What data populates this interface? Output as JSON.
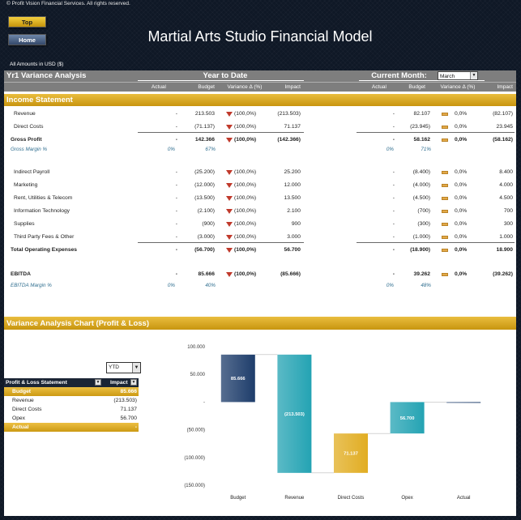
{
  "copyright": "© Profit Vision Financial Services. All rights reserved.",
  "nav": {
    "top": "Top",
    "home": "Home"
  },
  "title": "Martial Arts Studio Financial Model",
  "amounts_note": "All Amounts in  USD ($)",
  "variance": {
    "title": "Yr1 Variance Analysis",
    "ytd_label": "Year to Date",
    "cm_label": "Current Month:",
    "month": "March",
    "columns": [
      "Actual",
      "Budget",
      "Variance Δ  (%)",
      "Impact"
    ],
    "income_statement_label": "Income Statement",
    "rows": [
      {
        "label": "Revenue",
        "ytd": [
          "-",
          "213.503",
          "(100,0%)",
          "(213.503)"
        ],
        "cm": [
          "-",
          "82.107",
          "0,0%",
          "(82.107)"
        ]
      },
      {
        "label": "Direct Costs",
        "ytd": [
          "-",
          "(71.137)",
          "(100,0%)",
          "71.137"
        ],
        "cm": [
          "-",
          "(23.945)",
          "0,0%",
          "23.945"
        ]
      },
      {
        "label": "Gross Profit",
        "ytd": [
          "-",
          "142.366",
          "(100,0%)",
          "(142.366)"
        ],
        "cm": [
          "-",
          "58.162",
          "0,0%",
          "(58.162)"
        ]
      },
      {
        "label": "Gross Margin %",
        "ytd": [
          "0%",
          "67%"
        ],
        "cm": [
          "0%",
          "71%"
        ]
      },
      {
        "label": "Indirect Payroll",
        "ytd": [
          "-",
          "(25.200)",
          "(100,0%)",
          "25.200"
        ],
        "cm": [
          "-",
          "(8.400)",
          "0,0%",
          "8.400"
        ]
      },
      {
        "label": "Marketing",
        "ytd": [
          "-",
          "(12.000)",
          "(100,0%)",
          "12.000"
        ],
        "cm": [
          "-",
          "(4.000)",
          "0,0%",
          "4.000"
        ]
      },
      {
        "label": "Rent, Utilities & Telecom",
        "ytd": [
          "-",
          "(13.500)",
          "(100,0%)",
          "13.500"
        ],
        "cm": [
          "-",
          "(4.500)",
          "0,0%",
          "4.500"
        ]
      },
      {
        "label": "Information Technology",
        "ytd": [
          "-",
          "(2.100)",
          "(100,0%)",
          "2.100"
        ],
        "cm": [
          "-",
          "(700)",
          "0,0%",
          "700"
        ]
      },
      {
        "label": "Supplies",
        "ytd": [
          "-",
          "(900)",
          "(100,0%)",
          "900"
        ],
        "cm": [
          "-",
          "(300)",
          "0,0%",
          "300"
        ]
      },
      {
        "label": "Third Party Fees & Other",
        "ytd": [
          "-",
          "(3.000)",
          "(100,0%)",
          "3.000"
        ],
        "cm": [
          "-",
          "(1.000)",
          "0,0%",
          "1.000"
        ]
      },
      {
        "label": "Total Operating Expenses",
        "ytd": [
          "-",
          "(56.700)",
          "(100,0%)",
          "56.700"
        ],
        "cm": [
          "-",
          "(18.900)",
          "0,0%",
          "18.900"
        ]
      },
      {
        "label": "EBITDA",
        "ytd": [
          "-",
          "85.666",
          "(100,0%)",
          "(85.666)"
        ],
        "cm": [
          "-",
          "39.262",
          "0,0%",
          "(39.262)"
        ]
      },
      {
        "label": "EBITDA Margin %",
        "ytd": [
          "0%",
          "40%"
        ],
        "cm": [
          "0%",
          "48%"
        ]
      }
    ]
  },
  "chart_section": {
    "title": "Variance Analysis Chart (Profit & Loss)",
    "period": "YTD",
    "table": {
      "headers": [
        "Profit & Loss Statement",
        "Impact"
      ],
      "rows": [
        {
          "label": "Budget",
          "value": "85.666"
        },
        {
          "label": "Revenue",
          "value": "(213.503)"
        },
        {
          "label": "Direct Costs",
          "value": "71.137"
        },
        {
          "label": "Opex",
          "value": "56.700"
        },
        {
          "label": "Actual",
          "value": "-"
        }
      ]
    }
  },
  "chart_data": {
    "type": "bar",
    "title": "",
    "categories": [
      "Budget",
      "Revenue",
      "Direct Costs",
      "Opex",
      "Actual"
    ],
    "values": [
      85666,
      -213503,
      71137,
      56700,
      0
    ],
    "data_labels": [
      "85.666",
      "(213.503)",
      "71.137",
      "56.700",
      ""
    ],
    "ylim": [
      -150000,
      100000
    ],
    "yticks": [
      "100.000",
      "50.000",
      "-",
      "(50.000)",
      "(100.000)",
      "(150.000)"
    ],
    "colors": [
      "#1e3d6b",
      "#24a3b3",
      "#e1ad22",
      "#24a3b3",
      "#1e3d6b"
    ]
  }
}
